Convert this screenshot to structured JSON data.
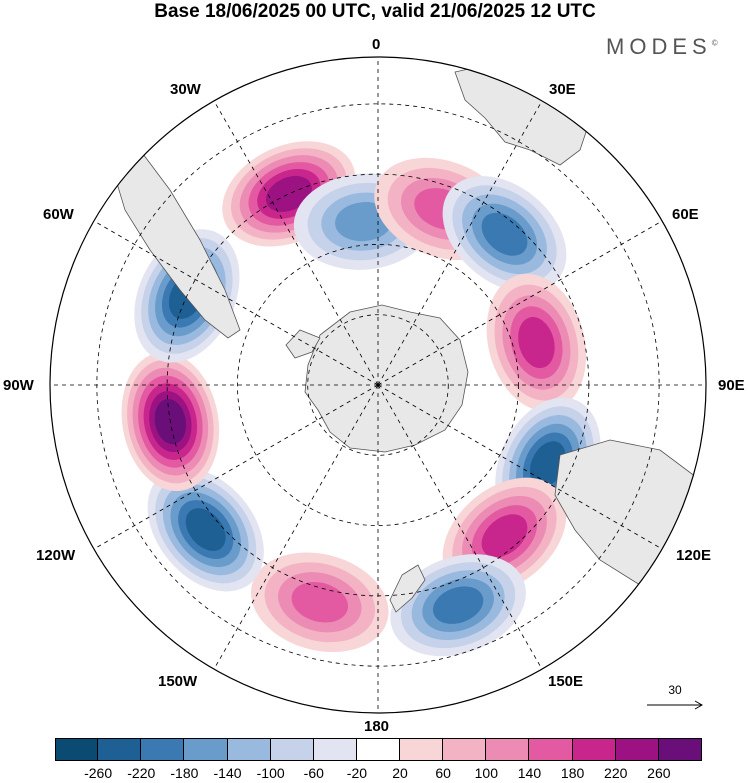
{
  "title": "Base 18/06/2025 00 UTC, valid 21/06/2025 12 UTC",
  "brand": {
    "text": "MODES",
    "mark": "©"
  },
  "longitude_labels": {
    "lon_0": "0",
    "lon_30e": "30E",
    "lon_60e": "60E",
    "lon_90e": "90E",
    "lon_120e": "120E",
    "lon_150e": "150E",
    "lon_180": "180",
    "lon_150w": "150W",
    "lon_120w": "120W",
    "lon_90w": "90W",
    "lon_60w": "60W",
    "lon_30w": "30W"
  },
  "reference_vector": {
    "value": "30"
  },
  "colorbar": {
    "colors": [
      "#0b4a73",
      "#1e5f94",
      "#3a79b2",
      "#6a9ccb",
      "#99bade",
      "#c6d2ea",
      "#e2e4f1",
      "#ffffff",
      "#f8d5d7",
      "#f3b3c4",
      "#ec8bb4",
      "#e35aa2",
      "#c8268c",
      "#9c1282",
      "#6a0f7a"
    ],
    "labels": [
      "-260",
      "-220",
      "-180",
      "-140",
      "-100",
      "-60",
      "-20",
      "20",
      "60",
      "100",
      "140",
      "180",
      "220",
      "260"
    ]
  },
  "anomaly_centers": [
    {
      "name": "south-atlantic-high",
      "sign": "positive",
      "value": 200,
      "lat": -45,
      "lon": -25
    },
    {
      "name": "weddell-low",
      "sign": "negative",
      "value": -140,
      "lat": -55,
      "lon": -5
    },
    {
      "name": "southern-africa-high",
      "sign": "positive",
      "value": 140,
      "lat": -50,
      "lon": 20
    },
    {
      "name": "south-indian-low",
      "sign": "negative",
      "value": -180,
      "lat": -48,
      "lon": 40
    },
    {
      "name": "kerguelen-high",
      "sign": "positive",
      "value": 180,
      "lat": -55,
      "lon": 75
    },
    {
      "name": "australia-low",
      "sign": "negative",
      "value": -220,
      "lat": -50,
      "lon": 115
    },
    {
      "name": "tasman-high",
      "sign": "positive",
      "value": 180,
      "lat": -48,
      "lon": 140
    },
    {
      "name": "new-zealand-low",
      "sign": "negative",
      "value": -160,
      "lat": -40,
      "lon": 160
    },
    {
      "name": "pacific-high",
      "sign": "positive",
      "value": 120,
      "lat": -42,
      "lon": -165
    },
    {
      "name": "east-pacific-low",
      "sign": "negative",
      "value": -220,
      "lat": -42,
      "lon": -130
    },
    {
      "name": "southeast-pacific-high",
      "sign": "positive",
      "value": 240,
      "lat": -45,
      "lon": -100
    },
    {
      "name": "south-america-low",
      "sign": "negative",
      "value": -200,
      "lat": -45,
      "lon": -65
    }
  ]
}
